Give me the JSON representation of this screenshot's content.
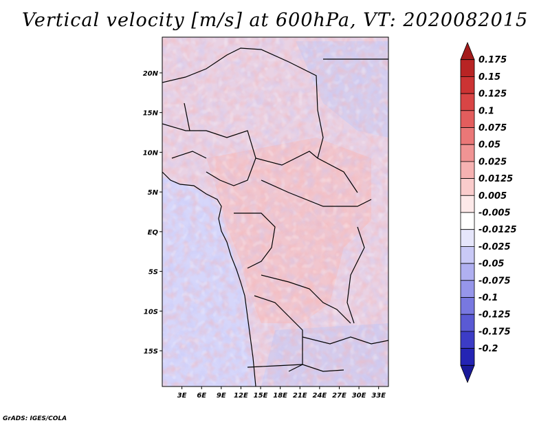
{
  "title": "Vertical velocity [m/s] at 600hPa, VT: 2020082015",
  "credit": "GrADS: IGES/COLA",
  "map": {
    "lat_ticks": [
      "20N",
      "15N",
      "10N",
      "5N",
      "EQ",
      "5S",
      "10S",
      "15S"
    ],
    "lon_ticks": [
      "3E",
      "6E",
      "9E",
      "12E",
      "15E",
      "18E",
      "21E",
      "24E",
      "27E",
      "30E",
      "33E"
    ],
    "lat_range": [
      -19.5,
      24.5
    ],
    "lon_range": [
      0,
      34.5
    ],
    "ocean_color": "#d6d6fa",
    "border_color": "#000000"
  },
  "colorbar": {
    "labels": [
      "0.175",
      "0.15",
      "0.125",
      "0.1",
      "0.075",
      "0.05",
      "0.025",
      "0.0125",
      "0.005",
      "-0.005",
      "-0.0125",
      "-0.025",
      "-0.05",
      "-0.075",
      "-0.1",
      "-0.125",
      "-0.175",
      "-0.2"
    ],
    "colors": [
      "#a31b1b",
      "#b82424",
      "#cc3333",
      "#d94545",
      "#e35d5d",
      "#ea7777",
      "#f09494",
      "#f6b2b2",
      "#facccc",
      "#fde9e9",
      "#ffffff",
      "#e6e6fb",
      "#c9c9f6",
      "#b0b0f1",
      "#9696ea",
      "#7878e0",
      "#5a5ad4",
      "#3c3cc6",
      "#2424b4",
      "#1a1a9a"
    ]
  }
}
